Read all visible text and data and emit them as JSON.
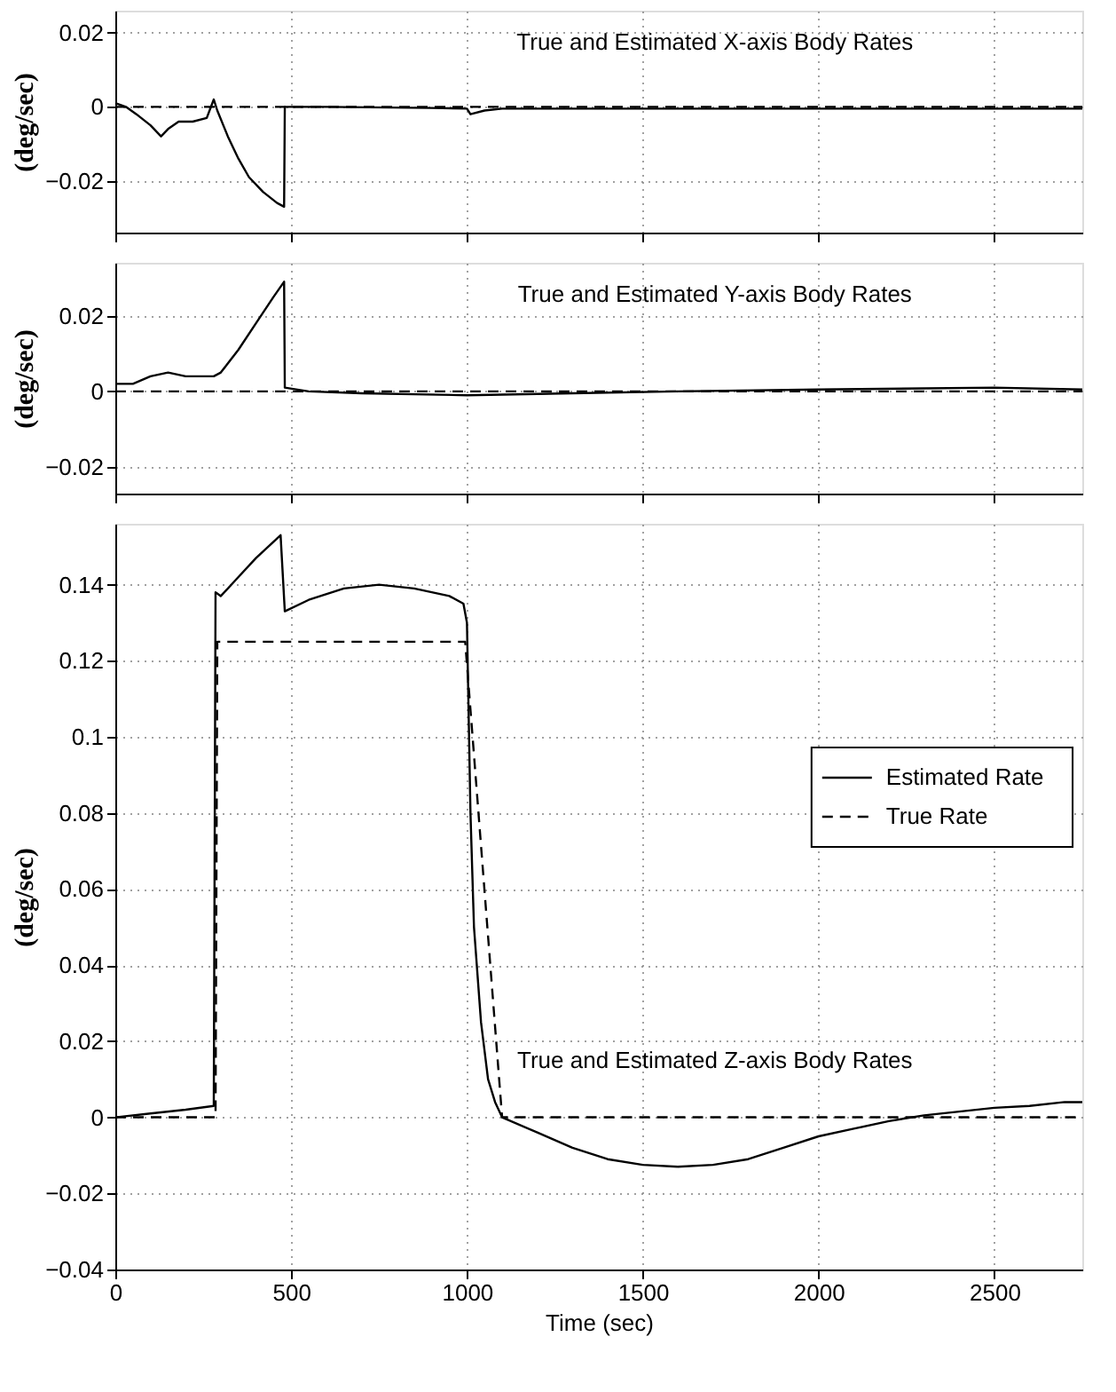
{
  "chart_data": [
    {
      "type": "line",
      "title": "True and Estimated X-axis Body Rates",
      "ylabel": "(deg/sec)",
      "xlim": [
        0,
        2750
      ],
      "xticks": [
        0,
        500,
        1000,
        1500,
        2000,
        2500
      ],
      "ylim": [
        -0.034,
        0.026
      ],
      "yticks": [
        -0.02,
        0,
        0.02
      ],
      "grid": true,
      "legend": false,
      "tick_labels": "y",
      "series": [
        {
          "color": "#000000",
          "line_style": "solid",
          "x": [
            0,
            30,
            60,
            100,
            130,
            150,
            180,
            220,
            260,
            280,
            290,
            320,
            350,
            380,
            420,
            460,
            480,
            482,
            600,
            900,
            1000,
            1010,
            1050,
            1100,
            2750
          ],
          "values": [
            0.001,
            0,
            -0.002,
            -0.005,
            -0.008,
            -0.006,
            -0.004,
            -0.004,
            -0.003,
            0.002,
            -0.001,
            -0.008,
            -0.014,
            -0.019,
            -0.023,
            -0.026,
            -0.027,
            0,
            0,
            -0.0003,
            -0.0005,
            -0.002,
            -0.001,
            -0.0005,
            -0.0005
          ]
        },
        {
          "color": "#000000",
          "line_style": "dashed",
          "x": [
            0,
            2750
          ],
          "values": [
            0,
            0
          ]
        }
      ]
    },
    {
      "type": "line",
      "title": "True and Estimated Y-axis Body Rates",
      "ylabel": "(deg/sec)",
      "xlim": [
        0,
        2750
      ],
      "xticks": [
        0,
        500,
        1000,
        1500,
        2000,
        2500
      ],
      "ylim": [
        -0.027,
        0.034
      ],
      "yticks": [
        -0.02,
        0,
        0.02
      ],
      "grid": true,
      "legend": false,
      "tick_labels": "y",
      "series": [
        {
          "color": "#000000",
          "line_style": "solid",
          "x": [
            0,
            50,
            100,
            150,
            200,
            280,
            300,
            350,
            400,
            450,
            480,
            482,
            550,
            700,
            1000,
            1300,
            1600,
            2000,
            2500,
            2750
          ],
          "values": [
            0.002,
            0.002,
            0.004,
            0.005,
            0.004,
            0.004,
            0.005,
            0.011,
            0.018,
            0.025,
            0.029,
            0.001,
            0,
            -0.0005,
            -0.001,
            -0.0005,
            0,
            0.0005,
            0.001,
            0.0005
          ]
        },
        {
          "color": "#000000",
          "line_style": "dashed",
          "x": [
            0,
            2750
          ],
          "values": [
            0,
            0
          ]
        }
      ]
    },
    {
      "type": "line",
      "title": "True and Estimated Z-axis Body Rates",
      "xlabel": "Time (sec)",
      "ylabel": "(deg/sec)",
      "xlim": [
        0,
        2750
      ],
      "xticks": [
        0,
        500,
        1000,
        1500,
        2000,
        2500
      ],
      "ylim": [
        -0.04,
        0.156
      ],
      "yticks": [
        -0.04,
        -0.02,
        0,
        0.02,
        0.04,
        0.06,
        0.08,
        0.1,
        0.12,
        0.14
      ],
      "grid": true,
      "legend": "right",
      "series": [
        {
          "name": "Estimated Rate",
          "color": "#000000",
          "line_style": "solid",
          "x": [
            0,
            100,
            200,
            280,
            285,
            300,
            350,
            400,
            470,
            482,
            550,
            650,
            750,
            850,
            950,
            990,
            1000,
            1010,
            1020,
            1040,
            1060,
            1080,
            1100,
            1200,
            1300,
            1400,
            1500,
            1600,
            1700,
            1800,
            1900,
            2000,
            2100,
            2200,
            2300,
            2400,
            2500,
            2600,
            2700,
            2750
          ],
          "values": [
            0,
            0.001,
            0.002,
            0.003,
            0.138,
            0.137,
            0.142,
            0.147,
            0.153,
            0.133,
            0.136,
            0.139,
            0.14,
            0.139,
            0.137,
            0.135,
            0.13,
            0.08,
            0.05,
            0.025,
            0.01,
            0.004,
            0,
            -0.004,
            -0.008,
            -0.011,
            -0.0125,
            -0.013,
            -0.0125,
            -0.011,
            -0.008,
            -0.005,
            -0.003,
            -0.001,
            0.0005,
            0.0015,
            0.0025,
            0.003,
            0.004,
            0.004
          ]
        },
        {
          "name": "True Rate",
          "color": "#000000",
          "line_style": "dashed",
          "x": [
            0,
            285,
            290,
            995,
            1100,
            2750
          ],
          "values": [
            0,
            0,
            0.125,
            0.125,
            0,
            0
          ]
        }
      ]
    }
  ]
}
